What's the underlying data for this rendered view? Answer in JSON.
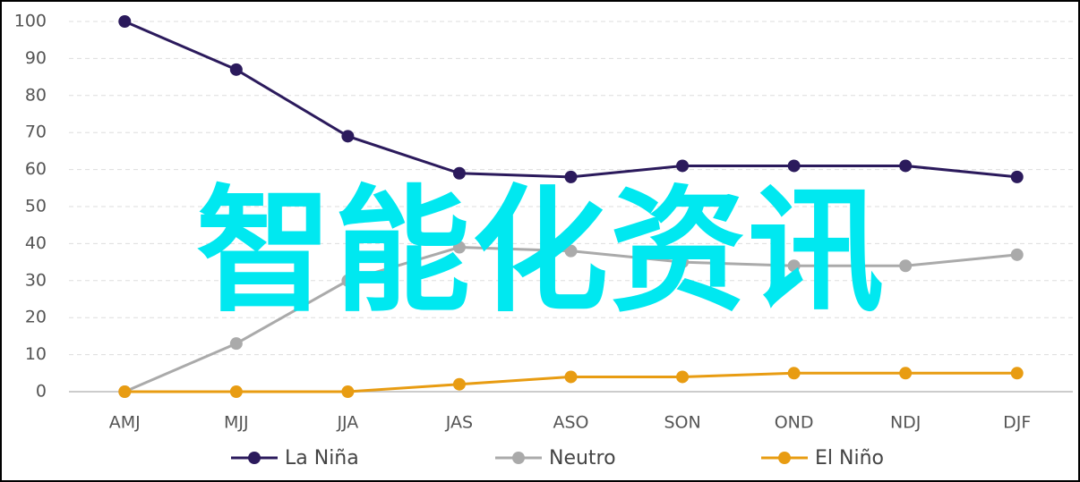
{
  "chart_data": {
    "type": "line",
    "categories": [
      "AMJ",
      "MJJ",
      "JJA",
      "JAS",
      "ASO",
      "SON",
      "OND",
      "NDJ",
      "DJF"
    ],
    "series": [
      {
        "name": "La Niña",
        "color": "#2b1a5c",
        "values": [
          100,
          87,
          69,
          59,
          58,
          61,
          61,
          61,
          58
        ]
      },
      {
        "name": "Neutro",
        "color": "#aaaaaa",
        "values": [
          0,
          13,
          30,
          39,
          38,
          35,
          34,
          34,
          37
        ]
      },
      {
        "name": "El Niño",
        "color": "#e89c12",
        "values": [
          0,
          0,
          0,
          2,
          4,
          4,
          5,
          5,
          5
        ]
      }
    ],
    "ylim": [
      0,
      100
    ],
    "yticks": [
      0,
      10,
      20,
      30,
      40,
      50,
      60,
      70,
      80,
      90,
      100
    ],
    "grid": true,
    "legend": "bottom",
    "annotations": [
      "智能化资讯"
    ]
  }
}
